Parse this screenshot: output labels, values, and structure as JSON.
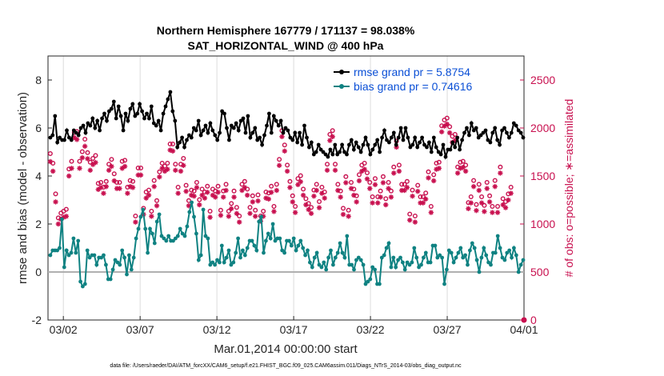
{
  "chart_data": {
    "type": "line",
    "title_line1": "Northern Hemisphere 167779 / 171137 = 98.038%",
    "title_line2": "SAT_HORIZONTAL_WIND @ 400 hPa",
    "xlabel": "Mar.01,2014 00:00:00 start",
    "ylabel": "rmse and bias (model - observation)",
    "y2label": "# of obs: o=possible; ∗=assimilated",
    "footnote": "data file: /Users/raeder/DAI/ATM_forcXX/CAM6_setup/f.e21.FHIST_BGC.f09_025.CAM6assim.011/Diags_NTrS_2014-03/obs_diag_output.nc",
    "xlim": [
      0,
      31
    ],
    "ylim": [
      -2,
      9
    ],
    "y2lim": [
      0,
      2750
    ],
    "x_ticks": [
      {
        "x": 1,
        "label": "03/02"
      },
      {
        "x": 6,
        "label": "03/07"
      },
      {
        "x": 11,
        "label": "03/12"
      },
      {
        "x": 16,
        "label": "03/17"
      },
      {
        "x": 21,
        "label": "03/22"
      },
      {
        "x": 26,
        "label": "03/27"
      },
      {
        "x": 31,
        "label": "04/01"
      }
    ],
    "y_ticks": [
      -2,
      0,
      2,
      4,
      6,
      8
    ],
    "y2_ticks": [
      0,
      500,
      1000,
      1500,
      2000,
      2500
    ],
    "legend_position": "top-right",
    "colors": {
      "rmse": "#000000",
      "bias": "#0f8282",
      "obs": "#c8104f",
      "zero": "#b0b0b0"
    },
    "series": [
      {
        "name": "rmse grand pr = 5.8754",
        "values": [
          5.6,
          5.7,
          6.5,
          5.4,
          5.6,
          5.5,
          5.5,
          5.9,
          5.6,
          5.5,
          5.9,
          5.8,
          5.7,
          6.0,
          6.1,
          5.8,
          6.2,
          6.1,
          6.4,
          6.0,
          6.3,
          5.9,
          6.4,
          6.6,
          6.3,
          6.7,
          6.8,
          7.1,
          6.4,
          6.9,
          6.5,
          5.9,
          6.6,
          6.3,
          6.8,
          7.0,
          6.5,
          6.6,
          7.0,
          6.7,
          6.4,
          6.6,
          6.4,
          6.9,
          6.2,
          6.1,
          6.3,
          5.9,
          6.6,
          6.9,
          7.2,
          7.5,
          6.7,
          6.3,
          5.2,
          5.4,
          5.6,
          5.2,
          5.5,
          5.7,
          5.6,
          6.0,
          5.9,
          6.3,
          5.7,
          5.9,
          6.1,
          5.8,
          6.2,
          5.9,
          5.7,
          5.5,
          5.8,
          6.7,
          6.6,
          6.0,
          5.5,
          6.1,
          6.0,
          6.2,
          5.9,
          6.3,
          6.4,
          5.8,
          6.5,
          5.6,
          5.8,
          6.0,
          5.5,
          5.6,
          5.3,
          5.7,
          6.1,
          6.6,
          5.8,
          6.5,
          6.3,
          6.1,
          6.3,
          5.8,
          6.0,
          5.9,
          5.6,
          5.5,
          5.8,
          5.4,
          5.8,
          5.3,
          6.1,
          5.6,
          5.2,
          5.4,
          4.9,
          5.0,
          5.3,
          5.1,
          5.0,
          4.9,
          4.8,
          5.1,
          4.9,
          5.3,
          4.9,
          5.0,
          5.3,
          5.0,
          4.9,
          5.3,
          5.5,
          5.1,
          5.4,
          5.2,
          5.0,
          5.3,
          5.6,
          5.3,
          4.9,
          5.1,
          5.3,
          5.5,
          5.0,
          5.6,
          5.9,
          5.5,
          5.4,
          5.6,
          5.8,
          5.3,
          5.6,
          6.0,
          5.5,
          6.0,
          5.6,
          5.2,
          5.3,
          5.6,
          5.2,
          5.4,
          5.6,
          5.3,
          5.2,
          5.4,
          5.0,
          5.6,
          5.2,
          5.0,
          4.9,
          5.3,
          4.8,
          5.1,
          5.1,
          5.4,
          5.2,
          5.6,
          5.1,
          5.5,
          5.8,
          6.0,
          5.7,
          6.2,
          5.9,
          6.0,
          5.6,
          5.7,
          5.8,
          5.9,
          5.5,
          5.4,
          5.8,
          6.0,
          5.5,
          5.3,
          5.9,
          6.0,
          5.8,
          5.6,
          5.8,
          6.2,
          6.1,
          5.9,
          5.8,
          5.6
        ]
      },
      {
        "name": "bias grand pr = 0.74616",
        "values": [
          0.7,
          0.9,
          0.9,
          0.9,
          1.0,
          2.2,
          0.2,
          0.9,
          0.7,
          0.8,
          1.4,
          0.8,
          1.3,
          -0.4,
          -0.6,
          -0.5,
          0.9,
          0.6,
          0.7,
          0.7,
          0.3,
          0.6,
          0.6,
          0.7,
          0.3,
          -0.3,
          -0.3,
          0.1,
          0.5,
          0.4,
          0.3,
          0.9,
          0.6,
          -0.1,
          0.7,
          0.1,
          0.6,
          1.4,
          1.8,
          2.3,
          2.6,
          1.8,
          0.8,
          1.8,
          1.6,
          1.2,
          2.1,
          2.4,
          1.5,
          1.4,
          1.3,
          1.5,
          1.3,
          1.3,
          1.4,
          1.5,
          1.8,
          1.6,
          1.5,
          1.9,
          2.5,
          2.9,
          2.3,
          1.6,
          0.5,
          0.7,
          2.6,
          1.5,
          1.4,
          0.3,
          0.4,
          0.3,
          0.5,
          0.4,
          1.1,
          0.4,
          0.6,
          0.9,
          0.3,
          0.4,
          0.8,
          1.4,
          0.6,
          0.9,
          0.7,
          1.0,
          1.3,
          1.3,
          1.1,
          0.9,
          2.1,
          2.3,
          0.8,
          1.3,
          1.6,
          1.4,
          2.0,
          1.3,
          1.4,
          1.4,
          0.9,
          0.8,
          1.3,
          1.3,
          1.1,
          1.4,
          0.9,
          1.1,
          1.3,
          1.0,
          0.7,
          0.9,
          0.4,
          0.2,
          0.6,
          0.8,
          0.3,
          0.2,
          0.4,
          0.1,
          0.6,
          0.9,
          0.3,
          0.6,
          0.8,
          1.2,
          0.8,
          0.6,
          1.5,
          0.3,
          0.3,
          0.1,
          0.5,
          0.6,
          0.5,
          0.3,
          -0.5,
          -0.4,
          -0.3,
          0.2,
          0.1,
          -0.5,
          -0.5,
          0.6,
          0.7,
          1.0,
          1.2,
          0.2,
          0.6,
          0.2,
          0.5,
          0.6,
          0.4,
          0.1,
          0.4,
          0.3,
          0.4,
          1.0,
          0.6,
          0.2,
          0.3,
          0.6,
          0.8,
          0.4,
          0.4,
          1.1,
          1.1,
          0.6,
          0.7,
          0.6,
          -0.5,
          0.1,
          0.9,
          0.8,
          0.4,
          0.6,
          0.8,
          1.0,
          0.6,
          0.7,
          0.3,
          0.9,
          1.2,
          1.0,
          0.5,
          0.0,
          0.6,
          1.0,
          0.7,
          0.4,
          0.3,
          0.8,
          0.8,
          1.5,
          1.0,
          0.6,
          0.5,
          0.8,
          0.9,
          0.6,
          1.0,
          0.7,
          0.0,
          0.3,
          0.5
        ]
      },
      {
        "name": "possible",
        "values": [
          1700,
          1600,
          1280,
          1030,
          1080,
          1100,
          1120,
          1540,
          1620,
          1920,
          1930,
          1620,
          1720,
          1850,
          1710,
          1610,
          1650,
          1680,
          1390,
          1400,
          1350,
          1410,
          1590,
          1640,
          1490,
          1400,
          1400,
          1620,
          1630,
          1350,
          1420,
          1410,
          1050,
          1550,
          1550,
          1130,
          1300,
          1320,
          1100,
          1420,
          1210,
          1510,
          1600,
          1570,
          1600,
          1800,
          1800,
          1590,
          1350,
          1590,
          1650,
          1370,
          1210,
          1320,
          1310,
          1400,
          1220,
          1330,
          1300,
          1360,
          1100,
          1330,
          1310,
          1360,
          1110,
          1310,
          1380,
          1100,
          1180,
          1310,
          1140,
          1050,
          1380,
          1410,
          1330,
          1140,
          1260,
          1110,
          1270,
          1050,
          1100,
          1300,
          1290,
          1360,
          1150,
          1380,
          1640,
          1940,
          1790,
          1580,
          1410,
          1260,
          1150,
          1440,
          1470,
          1330,
          1230,
          1180,
          1140,
          1320,
          1380,
          1200,
          1350,
          1300,
          1590,
          1900,
          1940,
          1590,
          1380,
          1310,
          1130,
          1460,
          1110,
          1400,
          1330,
          1260,
          1480,
          1580,
          1600,
          1500,
          1400,
          1250,
          1440,
          1250,
          1310,
          1460,
          1230,
          1400,
          1310,
          1560,
          1830,
          1580,
          1380,
          1380,
          1410,
          1070,
          1320,
          1050,
          1370,
          1250,
          1250,
          1290,
          1510,
          1150,
          1480,
          1600,
          1610,
          1990,
          2050,
          2070,
          1980,
          1880,
          1900,
          1560,
          1610,
          1620,
          1580,
          1190,
          1250,
          1420,
          1170,
          1380,
          1250,
          1160,
          1400,
          1260,
          1150,
          1420,
          1150,
          1560,
          1230,
          1200,
          1280,
          1350
        ]
      },
      {
        "name": "assimilated",
        "values": [
          1650,
          1550,
          1230,
          1000,
          1050,
          1070,
          1080,
          1500,
          1580,
          1900,
          1880,
          1580,
          1690,
          1810,
          1680,
          1560,
          1620,
          1640,
          1360,
          1380,
          1320,
          1390,
          1560,
          1600,
          1450,
          1370,
          1370,
          1580,
          1600,
          1320,
          1390,
          1380,
          1020,
          1510,
          1510,
          1100,
          1270,
          1300,
          1080,
          1390,
          1190,
          1490,
          1580,
          1550,
          1570,
          1770,
          1760,
          1560,
          1320,
          1550,
          1610,
          1340,
          1190,
          1300,
          1290,
          1380,
          1200,
          1300,
          1270,
          1330,
          1070,
          1300,
          1280,
          1330,
          1090,
          1280,
          1350,
          1080,
          1160,
          1280,
          1110,
          1020,
          1350,
          1380,
          1300,
          1110,
          1230,
          1080,
          1240,
          1030,
          1080,
          1270,
          1260,
          1330,
          1130,
          1350,
          1610,
          1910,
          1760,
          1550,
          1380,
          1230,
          1120,
          1410,
          1440,
          1300,
          1200,
          1150,
          1110,
          1290,
          1350,
          1170,
          1320,
          1270,
          1560,
          1870,
          1910,
          1560,
          1350,
          1280,
          1100,
          1430,
          1080,
          1370,
          1300,
          1230,
          1450,
          1550,
          1570,
          1470,
          1370,
          1220,
          1410,
          1220,
          1280,
          1430,
          1200,
          1370,
          1280,
          1530,
          1800,
          1550,
          1350,
          1350,
          1380,
          1040,
          1290,
          1020,
          1340,
          1220,
          1220,
          1260,
          1480,
          1120,
          1450,
          1570,
          1580,
          1960,
          2020,
          2040,
          1950,
          1850,
          1870,
          1530,
          1580,
          1590,
          1550,
          1160,
          1220,
          1390,
          1140,
          1350,
          1220,
          1130,
          1370,
          1230,
          1120,
          1390,
          1120,
          1530,
          1200,
          1170,
          1250,
          1320
        ]
      }
    ]
  }
}
